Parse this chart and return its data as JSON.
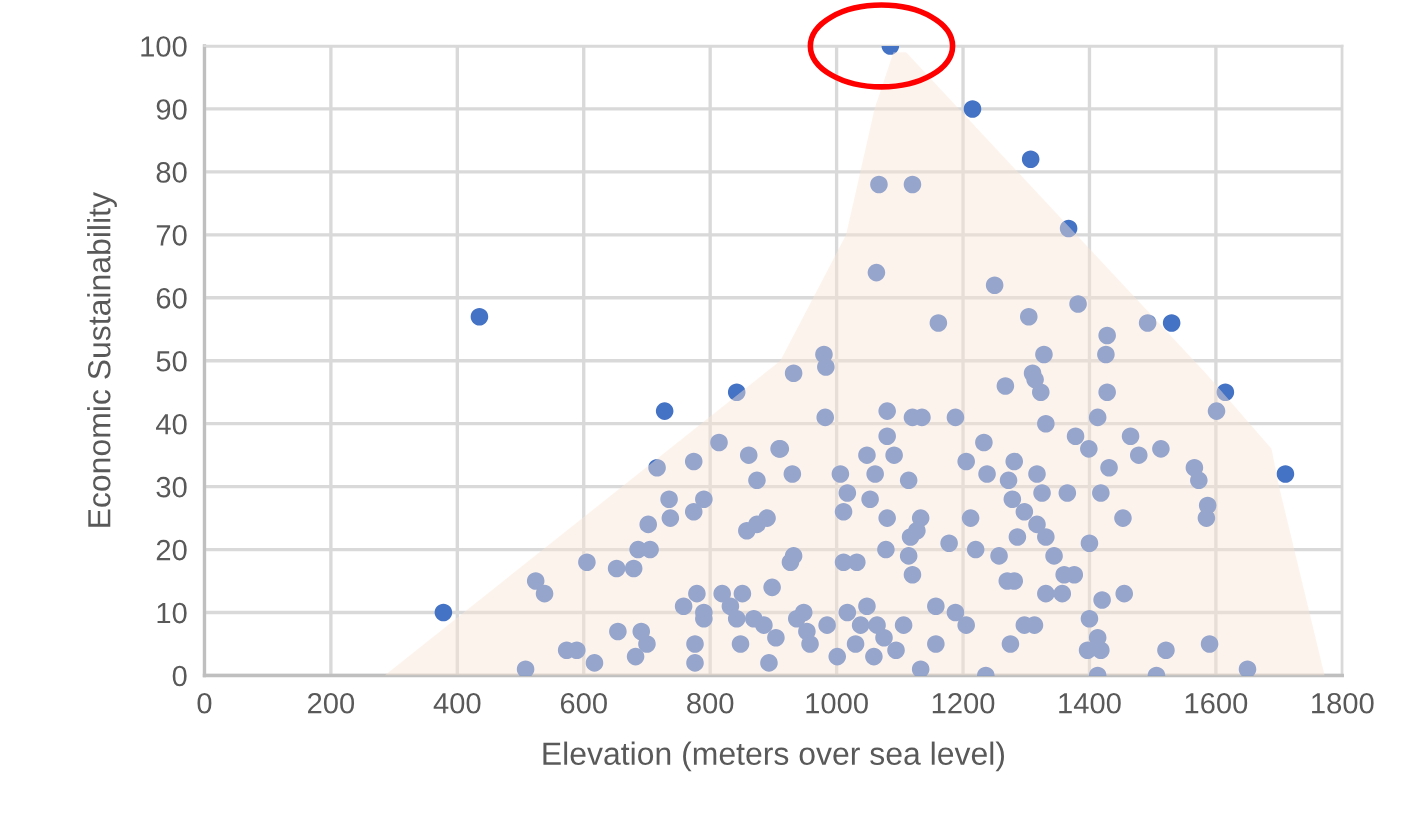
{
  "chart_data": {
    "type": "scatter",
    "xlabel": "Elevation (meters over sea level)",
    "ylabel": "Economic Sustainability",
    "xlim": [
      0,
      1800
    ],
    "xticks": [
      0,
      200,
      400,
      600,
      800,
      1000,
      1200,
      1400,
      1600,
      1800
    ],
    "ylim": [
      0,
      100
    ],
    "yticks": [
      0,
      10,
      20,
      30,
      40,
      50,
      60,
      70,
      80,
      90,
      100
    ],
    "grid": true,
    "legend": false,
    "series": [
      {
        "color": "#4472c4",
        "marker": "circle",
        "x": [
          435,
          842,
          932,
          1085,
          1215,
          1307,
          1067,
          1120,
          1367,
          1063,
          1250,
          1161,
          1304,
          1382,
          1492,
          1530,
          1428,
          1426,
          1328,
          980,
          983,
          1267,
          1310,
          1314,
          1323,
          1428,
          1615,
          728,
          716,
          814,
          774,
          861,
          874,
          909,
          735,
          790,
          774,
          737,
          702,
          890,
          874,
          858,
          705,
          686,
          605,
          652,
          679,
          524,
          538,
          779,
          819,
          851,
          898,
          758,
          790,
          790,
          832,
          842,
          869,
          885,
          904,
          378,
          573,
          589,
          617,
          654,
          691,
          700,
          682,
          776,
          776,
          848,
          893,
          508,
          982,
          1080,
          1120,
          1135,
          1188,
          1080,
          1091,
          1048,
          1061,
          1006,
          1017,
          1011,
          1053,
          1080,
          1114,
          911,
          930,
          1133,
          1127,
          1117,
          1114,
          1078,
          1120,
          1178,
          1212,
          1220,
          1257,
          1205,
          1233,
          1238,
          1281,
          1272,
          1278,
          1297,
          1286,
          1317,
          1325,
          1317,
          1331,
          1344,
          1365,
          1360,
          1376,
          1281,
          1270,
          1331,
          1357,
          1331,
          1378,
          1399,
          1413,
          1431,
          1418,
          1400,
          1453,
          1465,
          1478,
          1513,
          1566,
          1573,
          1587,
          1585,
          1601,
          1710,
          1420,
          1455,
          1400,
          1413,
          1397,
          1418,
          1297,
          1313,
          1275,
          1521,
          1590,
          1650,
          1236,
          1413,
          1506,
          1133,
          1157,
          1157,
          1188,
          1205,
          1106,
          1094,
          1059,
          1030,
          1001,
          958,
          1017,
          1048,
          1038,
          1064,
          1075,
          985,
          948,
          937,
          953,
          1032,
          1011,
          932,
          927
        ],
        "values": [
          57,
          45,
          48,
          100,
          90,
          82,
          78,
          78,
          71,
          64,
          62,
          56,
          57,
          59,
          56,
          56,
          54,
          51,
          51,
          51,
          49,
          46,
          48,
          47,
          45,
          45,
          45,
          42,
          33,
          37,
          34,
          35,
          31,
          36,
          28,
          28,
          26,
          25,
          24,
          25,
          24,
          23,
          20,
          20,
          18,
          17,
          17,
          15,
          13,
          13,
          13,
          13,
          14,
          11,
          10,
          9,
          11,
          9,
          9,
          8,
          6,
          10,
          4,
          4,
          2,
          7,
          7,
          5,
          3,
          5,
          2,
          5,
          2,
          1,
          41,
          42,
          41,
          41,
          41,
          38,
          35,
          35,
          32,
          32,
          29,
          26,
          28,
          25,
          31,
          36,
          32,
          25,
          23,
          22,
          19,
          20,
          16,
          21,
          25,
          20,
          19,
          34,
          37,
          32,
          34,
          31,
          28,
          26,
          22,
          32,
          29,
          24,
          22,
          19,
          29,
          16,
          16,
          15,
          15,
          13,
          13,
          40,
          38,
          36,
          41,
          33,
          29,
          21,
          25,
          38,
          35,
          36,
          33,
          31,
          27,
          25,
          42,
          32,
          12,
          13,
          9,
          6,
          4,
          4,
          8,
          8,
          5,
          4,
          5,
          1,
          0,
          0,
          0,
          1,
          5,
          11,
          10,
          8,
          8,
          4,
          3,
          5,
          3,
          5,
          10,
          11,
          8,
          8,
          6,
          8,
          10,
          9,
          7,
          18,
          18,
          19,
          18
        ]
      },
      {
        "type": "area",
        "color": "#fbe5d6",
        "x": [
          285,
          911,
          1015,
          1060,
          1090,
          1110,
          1584,
          1688,
          1700,
          1772
        ],
        "values": [
          0,
          50,
          70,
          90,
          99,
          99,
          48,
          36,
          30,
          0
        ]
      }
    ]
  }
}
